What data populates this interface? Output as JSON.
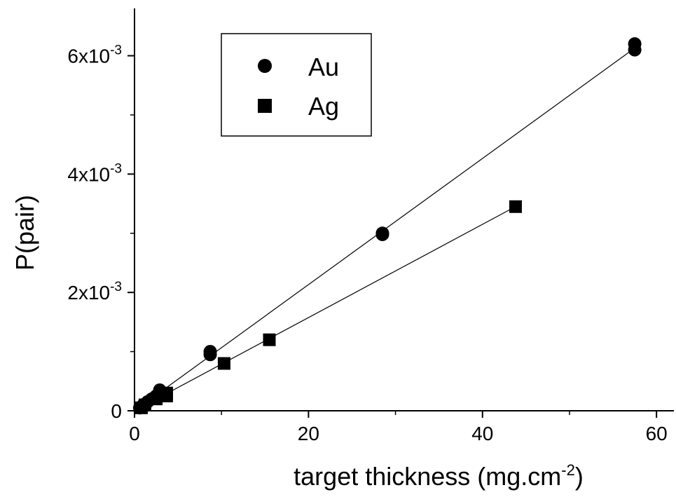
{
  "chart_data": {
    "type": "scatter",
    "title": "",
    "xlabel": {
      "base": "target thickness (mg.cm",
      "sup": "-2",
      "tail": ")"
    },
    "ylabel": "P(pair)",
    "xlim": [
      0,
      62
    ],
    "ylim": [
      0,
      0.0068
    ],
    "x_ticks": [
      {
        "value": 0,
        "label": "0"
      },
      {
        "value": 20,
        "label": "20"
      },
      {
        "value": 40,
        "label": "40"
      },
      {
        "value": 60,
        "label": "60"
      }
    ],
    "y_ticks": [
      {
        "value": 0,
        "mant": "0",
        "sup": ""
      },
      {
        "value": 0.002,
        "mant": "2x10",
        "sup": "-3"
      },
      {
        "value": 0.004,
        "mant": "4x10",
        "sup": "-3"
      },
      {
        "value": 0.006,
        "mant": "6x10",
        "sup": "-3"
      }
    ],
    "legend_position": "top-left",
    "grid": false,
    "series": [
      {
        "name": "Au",
        "marker": "circle",
        "color": "#000000",
        "points": [
          [
            0.6,
            5e-05
          ],
          [
            1.0,
            0.0001
          ],
          [
            1.5,
            0.00015
          ],
          [
            2.0,
            0.0002
          ],
          [
            2.5,
            0.00025
          ],
          [
            2.9,
            0.00035
          ],
          [
            3.2,
            0.0003
          ],
          [
            8.7,
            0.001
          ],
          [
            8.7,
            0.00095
          ],
          [
            28.5,
            0.003
          ],
          [
            28.5,
            0.00298
          ],
          [
            57.5,
            0.0062
          ],
          [
            57.5,
            0.0061
          ]
        ],
        "fit": [
          [
            0,
            0
          ],
          [
            57.5,
            0.00613
          ]
        ]
      },
      {
        "name": "Ag",
        "marker": "square",
        "color": "#000000",
        "points": [
          [
            0.8,
            5e-05
          ],
          [
            1.2,
            0.0001
          ],
          [
            2.5,
            0.0002
          ],
          [
            3.7,
            0.0003
          ],
          [
            3.7,
            0.00025
          ],
          [
            10.3,
            0.0008
          ],
          [
            15.5,
            0.0012
          ],
          [
            43.8,
            0.00345
          ]
        ],
        "fit": [
          [
            0,
            0
          ],
          [
            43.8,
            0.00345
          ]
        ]
      }
    ]
  }
}
